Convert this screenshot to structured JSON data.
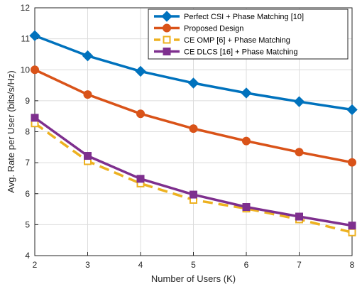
{
  "chart_data": {
    "type": "line",
    "x": [
      2,
      3,
      4,
      5,
      6,
      7,
      8
    ],
    "series": [
      {
        "name": "Perfect CSI + Phase Matching [10]",
        "values": [
          11.1,
          10.45,
          9.95,
          9.57,
          9.25,
          8.97,
          8.71
        ],
        "color": "#0072BD",
        "marker": "diamond",
        "dash": "solid"
      },
      {
        "name": "Proposed Design",
        "values": [
          10.0,
          9.2,
          8.58,
          8.1,
          7.7,
          7.34,
          7.01
        ],
        "color": "#D95319",
        "marker": "circle",
        "dash": "solid"
      },
      {
        "name": "CE OMP [6] + Phase Matching",
        "values": [
          8.27,
          7.05,
          6.33,
          5.8,
          5.52,
          5.17,
          4.75
        ],
        "color": "#EDB120",
        "marker": "square-open",
        "dash": "dashed"
      },
      {
        "name": "CE DLCS [16] + Phase Matching",
        "values": [
          8.45,
          7.22,
          6.48,
          5.97,
          5.57,
          5.26,
          4.97
        ],
        "color": "#7E2F8E",
        "marker": "square",
        "dash": "solid"
      }
    ],
    "xlabel": "Number of Users (K)",
    "ylabel": "Avg. Rate per User (bits/s/Hz)",
    "xlim": [
      2,
      8
    ],
    "ylim": [
      4,
      12
    ],
    "xticks": [
      "2",
      "3",
      "4",
      "5",
      "6",
      "7",
      "8"
    ],
    "yticks": [
      "4",
      "5",
      "6",
      "7",
      "8",
      "9",
      "10",
      "11",
      "12"
    ],
    "grid": true,
    "legend_position": "top-right"
  }
}
